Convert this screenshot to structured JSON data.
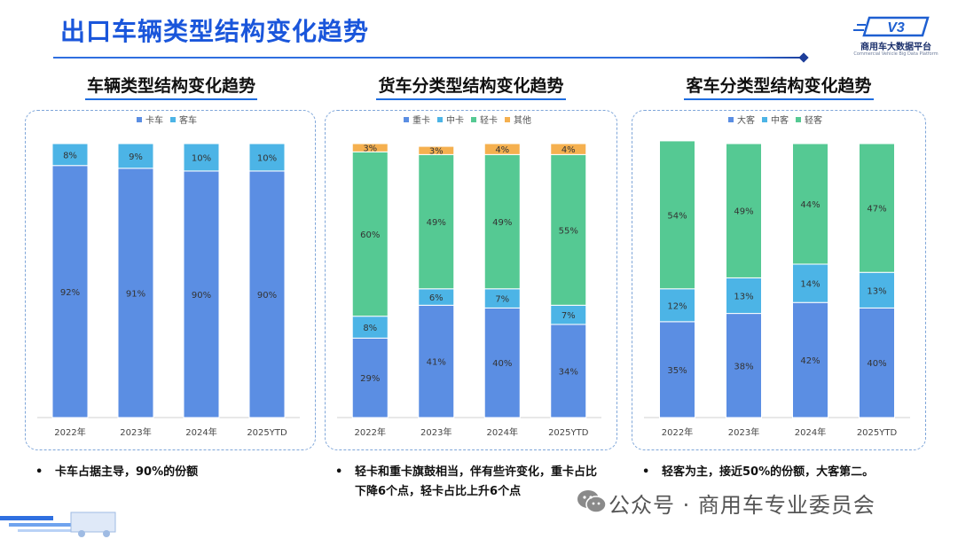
{
  "page": {
    "title": "出口车辆类型结构变化趋势",
    "logo_name": "商用车大数据平台",
    "logo_sub": "Commercial Vehicle Big Data Platform",
    "logo_mark": "V3",
    "wechat_text": "公众号 · 商用车专业委员会",
    "colors": {
      "title": "#1a56db",
      "heavy": "#5b8ee3",
      "light_blue": "#4cb4e6",
      "green": "#55c993",
      "orange": "#f5b04f"
    }
  },
  "notes": [
    {
      "lines": [
        "卡车占据主导，90%的份额"
      ]
    },
    {
      "lines": [
        "轻卡和重卡旗鼓相当，伴有些许变化，重卡占比",
        "下降6个点，轻卡占比上升6个点"
      ]
    },
    {
      "lines": [
        "轻客为主，接近50%的份额，大客第二。"
      ]
    }
  ],
  "chart_data": [
    {
      "type": "bar",
      "stacked": true,
      "title": "车辆类型结构变化趋势",
      "categories": [
        "2022年",
        "2023年",
        "2024年",
        "2025YTD"
      ],
      "series": [
        {
          "name": "卡车",
          "color": "#5b8ee3",
          "values": [
            92,
            91,
            90,
            90
          ],
          "labels": [
            "92%",
            "91%",
            "90%",
            "90%"
          ]
        },
        {
          "name": "客车",
          "color": "#4cb4e6",
          "values": [
            8,
            9,
            10,
            10
          ],
          "labels": [
            "8%",
            "9%",
            "10%",
            "10%"
          ]
        }
      ],
      "ylim": [
        0,
        100
      ],
      "legend": "top-center",
      "grid": false
    },
    {
      "type": "bar",
      "stacked": true,
      "title": "货车分类型结构变化趋势",
      "categories": [
        "2022年",
        "2023年",
        "2024年",
        "2025YTD"
      ],
      "series": [
        {
          "name": "重卡",
          "color": "#5b8ee3",
          "values": [
            29,
            41,
            40,
            34
          ],
          "labels": [
            "29%",
            "41%",
            "40%",
            "34%"
          ]
        },
        {
          "name": "中卡",
          "color": "#4cb4e6",
          "values": [
            8,
            6,
            7,
            7
          ],
          "labels": [
            "8%",
            "6%",
            "7%",
            "7%"
          ]
        },
        {
          "name": "轻卡",
          "color": "#55c993",
          "values": [
            60,
            49,
            49,
            55
          ],
          "labels": [
            "60%",
            "49%",
            "49%",
            "55%"
          ]
        },
        {
          "name": "其他",
          "color": "#f5b04f",
          "values": [
            3,
            3,
            4,
            4
          ],
          "labels": [
            "3%",
            "3%",
            "4%",
            "4%"
          ]
        }
      ],
      "ylim": [
        0,
        100
      ],
      "legend": "top-center",
      "grid": false
    },
    {
      "type": "bar",
      "stacked": true,
      "title": "客车分类型结构变化趋势",
      "categories": [
        "2022年",
        "2023年",
        "2024年",
        "2025YTD"
      ],
      "series": [
        {
          "name": "大客",
          "color": "#5b8ee3",
          "values": [
            35,
            38,
            42,
            40
          ],
          "labels": [
            "35%",
            "38%",
            "42%",
            "40%"
          ]
        },
        {
          "name": "中客",
          "color": "#4cb4e6",
          "values": [
            12,
            13,
            14,
            13
          ],
          "labels": [
            "12%",
            "13%",
            "14%",
            "13%"
          ]
        },
        {
          "name": "轻客",
          "color": "#55c993",
          "values": [
            54,
            49,
            44,
            47
          ],
          "labels": [
            "54%",
            "49%",
            "44%",
            "47%"
          ]
        }
      ],
      "ylim": [
        0,
        100
      ],
      "legend": "top-center",
      "grid": false
    }
  ]
}
